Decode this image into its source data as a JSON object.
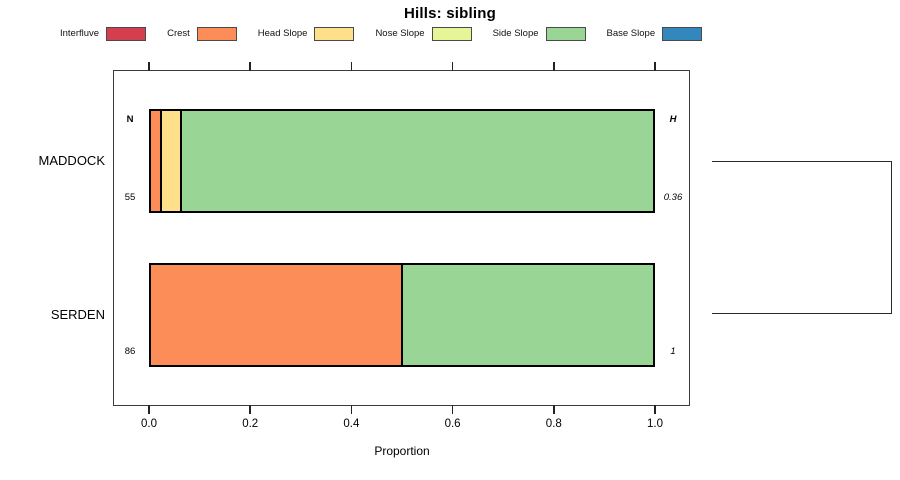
{
  "title": "Hills: sibling",
  "legend": [
    {
      "label": "Interfluve",
      "color": "#D53E4F"
    },
    {
      "label": "Crest",
      "color": "#FC8D59"
    },
    {
      "label": "Head Slope",
      "color": "#FEE08B"
    },
    {
      "label": "Nose Slope",
      "color": "#E6F598"
    },
    {
      "label": "Side Slope",
      "color": "#99D594"
    },
    {
      "label": "Base Slope",
      "color": "#3288BD"
    }
  ],
  "axis": {
    "label": "Proportion",
    "tick_labels": [
      "0.0",
      "0.2",
      "0.4",
      "0.6",
      "0.8",
      "1.0"
    ],
    "tick_values": [
      0,
      0.2,
      0.4,
      0.6,
      0.8,
      1.0
    ]
  },
  "headers": {
    "n": "N",
    "h": "H"
  },
  "rows": [
    {
      "name": "MADDOCK",
      "n": "55",
      "h": "0.36",
      "segments": [
        {
          "name": "Crest",
          "color": "#FC8D59",
          "value": 0.018
        },
        {
          "name": "Head Slope",
          "color": "#FEE08B",
          "value": 0.037
        },
        {
          "name": "Side Slope",
          "color": "#99D594",
          "value": 0.945
        }
      ]
    },
    {
      "name": "SERDEN",
      "n": "86",
      "h": "1",
      "segments": [
        {
          "name": "Crest",
          "color": "#FC8D59",
          "value": 0.5
        },
        {
          "name": "Side Slope",
          "color": "#99D594",
          "value": 0.5
        }
      ]
    }
  ],
  "chart_data": {
    "type": "bar",
    "orientation": "horizontal",
    "stacked": true,
    "title": "Hills: sibling",
    "xlabel": "Proportion",
    "xlim": [
      0,
      1
    ],
    "xticks": [
      0,
      0.2,
      0.4,
      0.6,
      0.8,
      1.0
    ],
    "grid": false,
    "legend_position": "top",
    "categories": [
      "MADDOCK",
      "SERDEN"
    ],
    "series": [
      {
        "name": "Interfluve",
        "color": "#D53E4F",
        "values": [
          0,
          0
        ]
      },
      {
        "name": "Crest",
        "color": "#FC8D59",
        "values": [
          0.018,
          0.5
        ]
      },
      {
        "name": "Head Slope",
        "color": "#FEE08B",
        "values": [
          0.037,
          0
        ]
      },
      {
        "name": "Nose Slope",
        "color": "#E6F598",
        "values": [
          0,
          0
        ]
      },
      {
        "name": "Side Slope",
        "color": "#99D594",
        "values": [
          0.945,
          0.5
        ]
      },
      {
        "name": "Base Slope",
        "color": "#3288BD",
        "values": [
          0,
          0
        ]
      }
    ],
    "annotations": {
      "N_label": "N",
      "H_label": "H",
      "N_values": [
        55,
        86
      ],
      "H_values": [
        0.36,
        1
      ]
    },
    "right_margin_feature": "cluster-bracket joining MADDOCK and SERDEN"
  }
}
